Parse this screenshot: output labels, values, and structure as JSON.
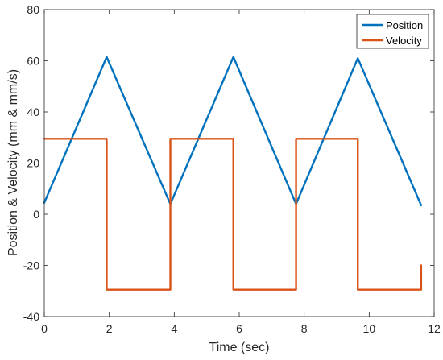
{
  "chart_data": {
    "type": "line",
    "title": "",
    "xlabel": "Time (sec)",
    "ylabel": "Position & Velocity (mm & mm/s)",
    "xlim": [
      0,
      12
    ],
    "ylim": [
      -40,
      80
    ],
    "x_ticks": [
      "0",
      "2",
      "4",
      "6",
      "8",
      "10",
      "12"
    ],
    "y_ticks": [
      "-40",
      "-20",
      "0",
      "20",
      "40",
      "60",
      "80"
    ],
    "grid": false,
    "legend_position": "top-right",
    "series": [
      {
        "name": "Position",
        "color": "#0072BD",
        "x": [
          0,
          1.92,
          3.88,
          5.82,
          7.75,
          9.65,
          11.6
        ],
        "y": [
          4.5,
          61.5,
          4,
          61.5,
          4,
          61,
          3.5
        ]
      },
      {
        "name": "Velocity",
        "color": "#D95319",
        "x": [
          0,
          1.92,
          1.92,
          3.88,
          3.88,
          5.82,
          5.82,
          7.75,
          7.75,
          9.65,
          9.65,
          11.6,
          11.6
        ],
        "y": [
          29.5,
          29.5,
          -29.5,
          -29.5,
          29.5,
          29.5,
          -29.5,
          -29.5,
          29.5,
          29.5,
          -29.5,
          -29.5,
          -20
        ]
      }
    ]
  }
}
